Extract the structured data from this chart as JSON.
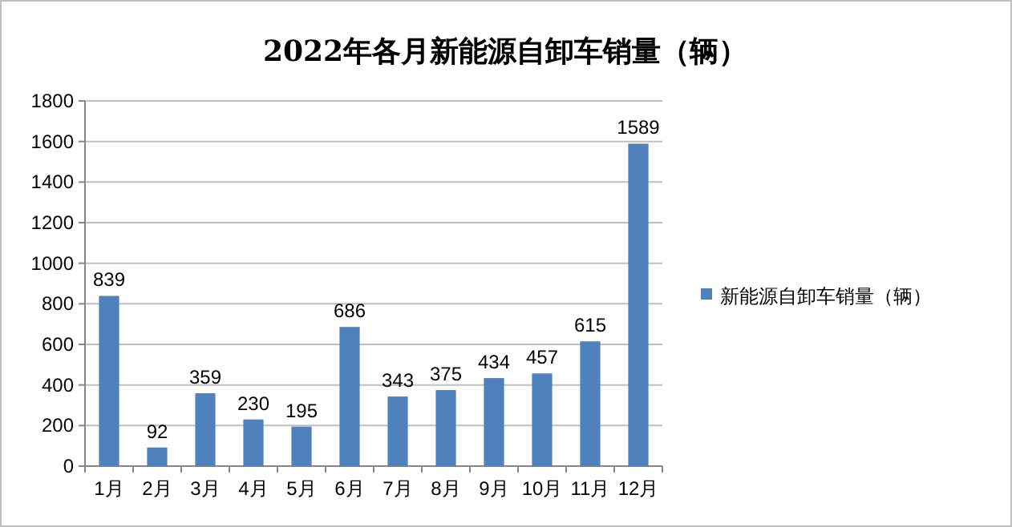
{
  "chart_data": {
    "type": "bar",
    "title": "2022年各月新能源自卸车销量（辆）",
    "categories": [
      "1月",
      "2月",
      "3月",
      "4月",
      "5月",
      "6月",
      "7月",
      "8月",
      "9月",
      "10月",
      "11月",
      "12月"
    ],
    "series": [
      {
        "name": "新能源自卸车销量（辆）",
        "color": "#4f81bd",
        "values": [
          839,
          92,
          359,
          230,
          195,
          686,
          343,
          375,
          434,
          457,
          615,
          1589
        ]
      }
    ],
    "ylim": [
      0,
      1800
    ],
    "yticks": [
      0,
      200,
      400,
      600,
      800,
      1000,
      1200,
      1400,
      1600,
      1800
    ],
    "grid": "y",
    "data_labels": true,
    "legend": "right"
  }
}
